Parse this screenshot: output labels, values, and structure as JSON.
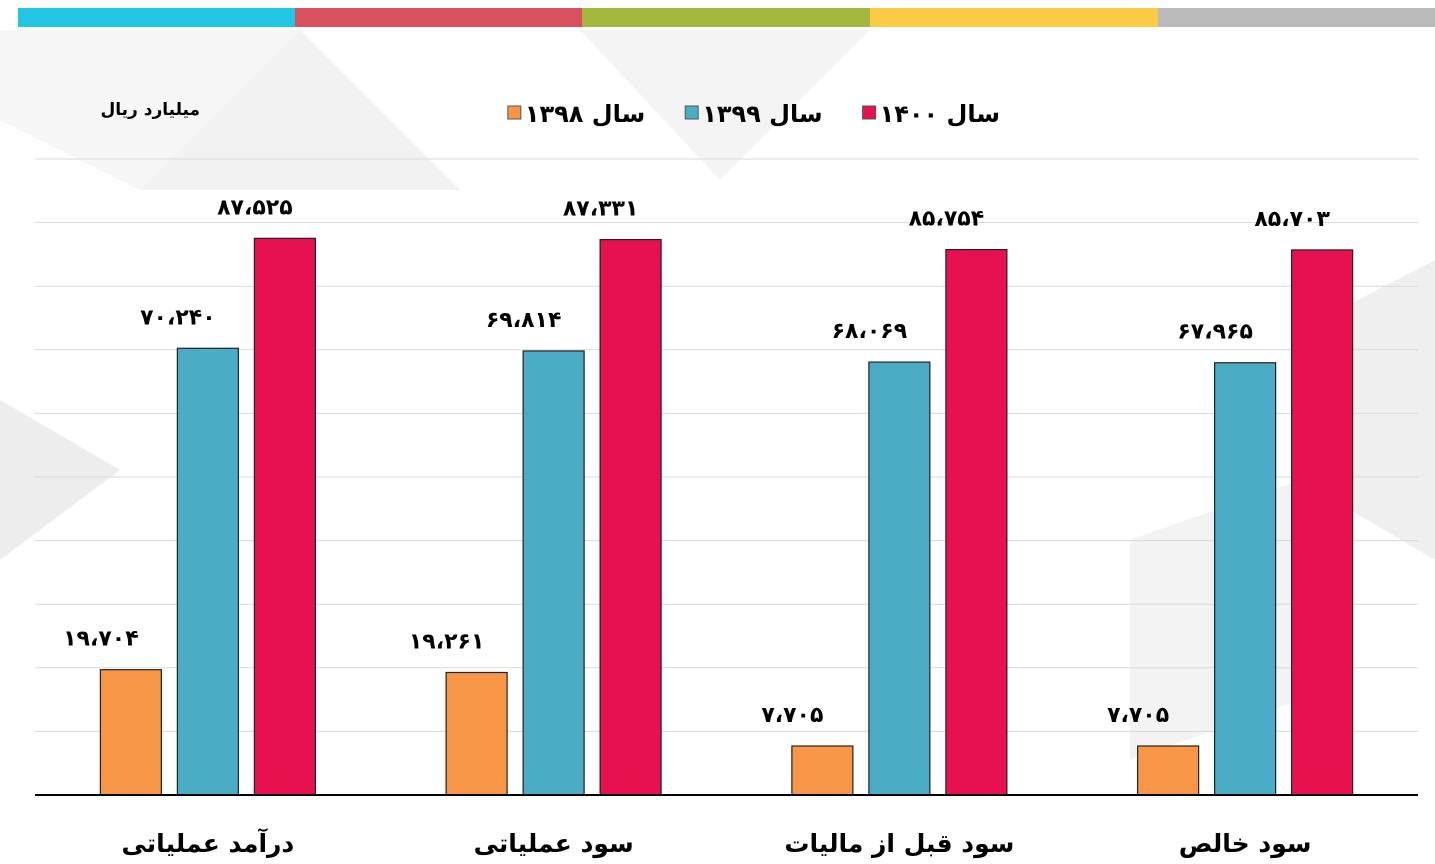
{
  "chart_data": {
    "type": "bar",
    "unit": "میلیارد ریال",
    "categories": [
      "درآمد عملیاتی",
      "سود عملیاتی",
      "سود قبل از مالیات",
      "سود خالص"
    ],
    "series": [
      {
        "name": "سال ۱۳۹۸",
        "color": "#f79646",
        "values": [
          19704,
          19261,
          7705,
          7705
        ],
        "value_labels": [
          "۱۹،۷۰۴",
          "۱۹،۲۶۱",
          "۷،۷۰۵",
          "۷،۷۰۵"
        ]
      },
      {
        "name": "سال ۱۳۹۹",
        "color": "#4bacc6",
        "values": [
          70240,
          69814,
          68069,
          67965
        ],
        "value_labels": [
          "۷۰،۲۴۰",
          "۶۹،۸۱۴",
          "۶۸،۰۶۹",
          "۶۷،۹۶۵"
        ]
      },
      {
        "name": "سال ۱۴۰۰",
        "color": "#e8114f",
        "values": [
          87525,
          87331,
          85754,
          85703
        ],
        "value_labels": [
          "۸۷،۵۲۵",
          "۸۷،۳۳۱",
          "۸۵،۷۵۴",
          "۸۵،۷۰۳"
        ]
      }
    ],
    "ylim": [
      0,
      100000
    ],
    "yticks": [
      0,
      10000,
      20000,
      30000,
      40000,
      50000,
      60000,
      70000,
      80000,
      90000,
      100000
    ],
    "grid": true
  }
}
